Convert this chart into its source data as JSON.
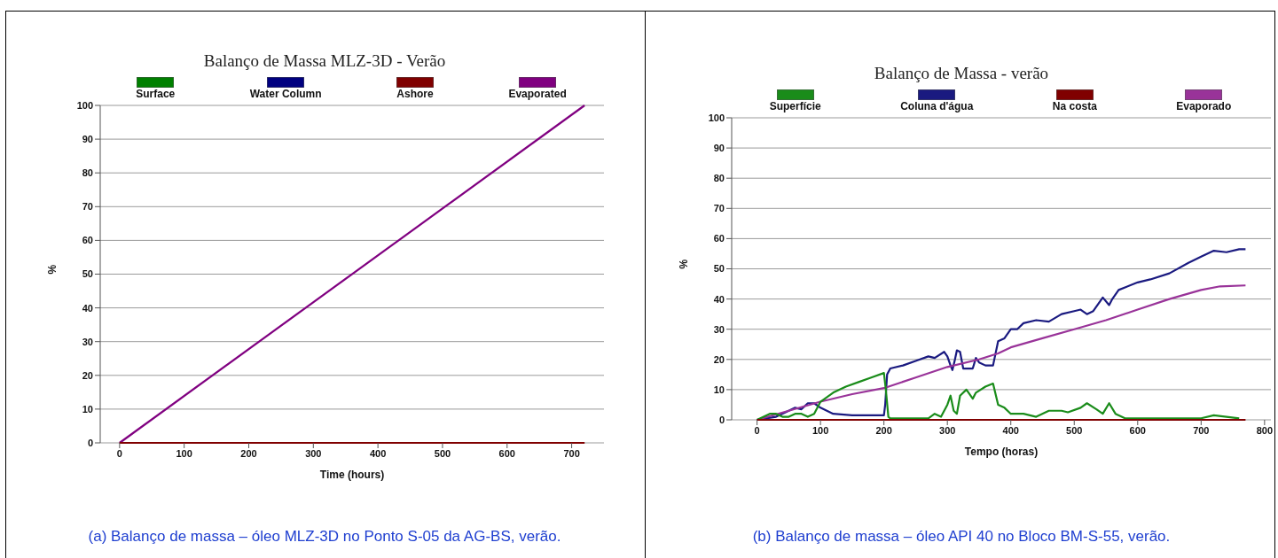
{
  "chart_data": [
    {
      "type": "line",
      "title": "Balanço de Massa MLZ-3D - Verão",
      "xlabel": "Time (hours)",
      "ylabel": "%",
      "xlim": [
        -30,
        750
      ],
      "xticks": [
        0,
        100,
        200,
        300,
        400,
        500,
        600,
        700
      ],
      "ylim": [
        0,
        100
      ],
      "yticks": [
        0,
        10,
        20,
        30,
        40,
        50,
        60,
        70,
        80,
        90,
        100
      ],
      "grid": "y",
      "legend": "top",
      "marker": "none",
      "line_style": "solid",
      "annotations": [
        "(a) Balanço de massa – óleo MLZ-3D no Ponto S-05 da AG-BS, verão."
      ],
      "series": [
        {
          "name": "Surface",
          "color": "#008000",
          "values": [
            null
          ]
        },
        {
          "name": "Water Column",
          "color": "#000080",
          "values": [
            null
          ]
        },
        {
          "name": "Ashore",
          "color": "#800000",
          "x": [
            0,
            720
          ],
          "values": [
            0,
            0
          ]
        },
        {
          "name": "Evaporated",
          "color": "#800080",
          "x": [
            0,
            720
          ],
          "values": [
            0,
            100
          ]
        }
      ]
    },
    {
      "type": "line",
      "title": "Balanço de Massa - verão",
      "xlabel": "Tempo (horas)",
      "ylabel": "%",
      "xlim": [
        -40,
        810
      ],
      "xticks": [
        0,
        100,
        200,
        300,
        400,
        500,
        600,
        700,
        800
      ],
      "ylim": [
        0,
        100
      ],
      "yticks": [
        0,
        10,
        20,
        30,
        40,
        50,
        60,
        70,
        80,
        90,
        100
      ],
      "grid": "y",
      "legend": "top",
      "marker": "none",
      "line_style": "solid",
      "annotations": [
        "(b) Balanço de massa – óleo API 40 no Bloco BM-S-55, verão."
      ],
      "series": [
        {
          "name": "Superfície",
          "color": "#1a8c1a",
          "x": [
            0,
            20,
            30,
            40,
            50,
            60,
            70,
            80,
            90,
            100,
            120,
            140,
            160,
            180,
            200,
            203,
            207,
            210,
            250,
            270,
            280,
            290,
            300,
            305,
            310,
            315,
            320,
            330,
            340,
            345,
            360,
            372,
            380,
            390,
            400,
            420,
            440,
            460,
            480,
            490,
            510,
            520,
            535,
            545,
            555,
            565,
            580,
            600,
            650,
            700,
            720,
            740,
            760
          ],
          "values": [
            0,
            2,
            2,
            1,
            1,
            2,
            2,
            1,
            2,
            6,
            9,
            11,
            12.5,
            14,
            15.5,
            10,
            1,
            0.5,
            0.5,
            0.5,
            2,
            1,
            5,
            8,
            3,
            2,
            8,
            10,
            7,
            9,
            11,
            12,
            5,
            4,
            2,
            2,
            1,
            3,
            3,
            2.5,
            4,
            5.5,
            3.5,
            2,
            5.5,
            2,
            0.5,
            0.5,
            0.5,
            0.5,
            1.5,
            1,
            0.5
          ]
        },
        {
          "name": "Coluna d'água",
          "color": "#1a1a80",
          "x": [
            0,
            30,
            50,
            60,
            70,
            80,
            90,
            100,
            110,
            120,
            150,
            200,
            202,
            205,
            210,
            230,
            250,
            270,
            280,
            295,
            300,
            305,
            308,
            312,
            315,
            320,
            325,
            340,
            345,
            350,
            360,
            372,
            380,
            390,
            400,
            410,
            420,
            440,
            460,
            480,
            500,
            510,
            520,
            530,
            545,
            555,
            560,
            570,
            600,
            620,
            650,
            680,
            700,
            720,
            740,
            760,
            770
          ],
          "values": [
            0,
            1,
            3,
            4,
            3.5,
            5.5,
            5.5,
            4,
            3,
            2,
            1.5,
            1.5,
            5,
            15,
            17,
            18,
            19.5,
            21,
            20.5,
            22.5,
            21,
            18,
            16.5,
            20,
            23,
            22.5,
            17,
            17,
            20.5,
            19,
            18,
            18,
            26,
            27,
            30,
            30,
            32,
            33,
            32.5,
            35,
            36,
            36.5,
            35,
            36,
            40.5,
            38,
            40,
            43,
            45.5,
            46.5,
            48.5,
            52,
            54,
            56,
            55.5,
            56.5,
            56.5
          ]
        },
        {
          "name": "Na costa",
          "color": "#800000",
          "x": [
            0,
            770
          ],
          "values": [
            0,
            0
          ]
        },
        {
          "name": "Evaporado",
          "color": "#993399",
          "x": [
            0,
            50,
            100,
            150,
            200,
            250,
            300,
            350,
            380,
            400,
            450,
            500,
            550,
            600,
            650,
            700,
            730,
            770
          ],
          "values": [
            0,
            3,
            6,
            8.5,
            10.5,
            14,
            17.5,
            20,
            22,
            24,
            27,
            30,
            33,
            36.5,
            40,
            43,
            44.2,
            44.5
          ]
        }
      ]
    }
  ]
}
